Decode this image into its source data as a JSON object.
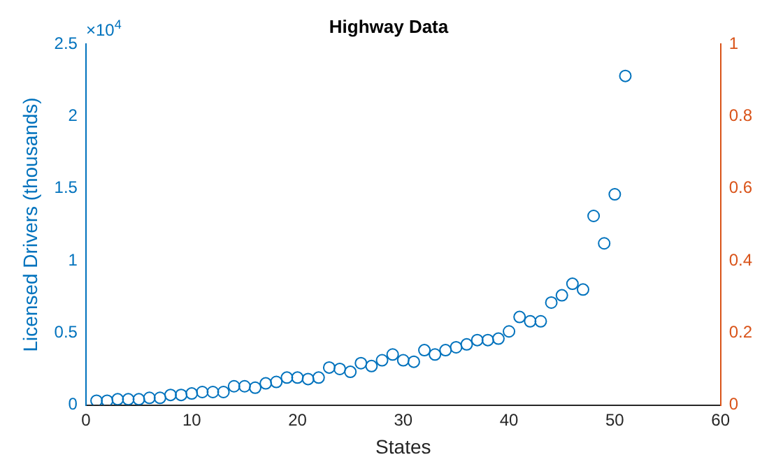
{
  "chart_data": {
    "type": "scatter",
    "title": "Highway Data",
    "xlabel": "States",
    "ylabel": "Licensed Drivers (thousands)",
    "annotations": [
      "×10$^{4}$"
    ],
    "x": [
      1,
      2,
      3,
      4,
      5,
      6,
      7,
      8,
      9,
      10,
      11,
      12,
      13,
      14,
      15,
      16,
      17,
      18,
      19,
      20,
      21,
      22,
      23,
      24,
      25,
      26,
      27,
      28,
      29,
      30,
      31,
      32,
      33,
      34,
      35,
      36,
      37,
      38,
      39,
      40,
      41,
      42,
      43,
      44,
      45,
      46,
      47,
      48,
      49,
      50,
      51
    ],
    "series": [
      {
        "color": "#0072bd",
        "values": [
          0.03,
          0.03,
          0.04,
          0.04,
          0.04,
          0.05,
          0.05,
          0.07,
          0.07,
          0.08,
          0.09,
          0.09,
          0.09,
          0.13,
          0.13,
          0.12,
          0.15,
          0.16,
          0.19,
          0.19,
          0.18,
          0.19,
          0.26,
          0.25,
          0.23,
          0.29,
          0.27,
          0.31,
          0.35,
          0.31,
          0.3,
          0.38,
          0.35,
          0.38,
          0.4,
          0.42,
          0.45,
          0.45,
          0.46,
          0.51,
          0.61,
          0.58,
          0.58,
          0.71,
          0.76,
          0.84,
          0.8,
          1.31,
          1.12,
          1.46,
          2.28
        ]
      }
    ],
    "marker": "circle",
    "grid": false,
    "legend": false,
    "xlim": [
      0,
      60
    ],
    "xticks": [
      0,
      10,
      20,
      30,
      40,
      50,
      60
    ],
    "ylim": [
      0,
      2.5
    ],
    "yticks": [
      0,
      0.5,
      1,
      1.5,
      2,
      2.5
    ],
    "y2lim": [
      0,
      1
    ],
    "y2ticks": [
      0,
      0.2,
      0.4,
      0.6,
      0.8,
      1
    ]
  }
}
